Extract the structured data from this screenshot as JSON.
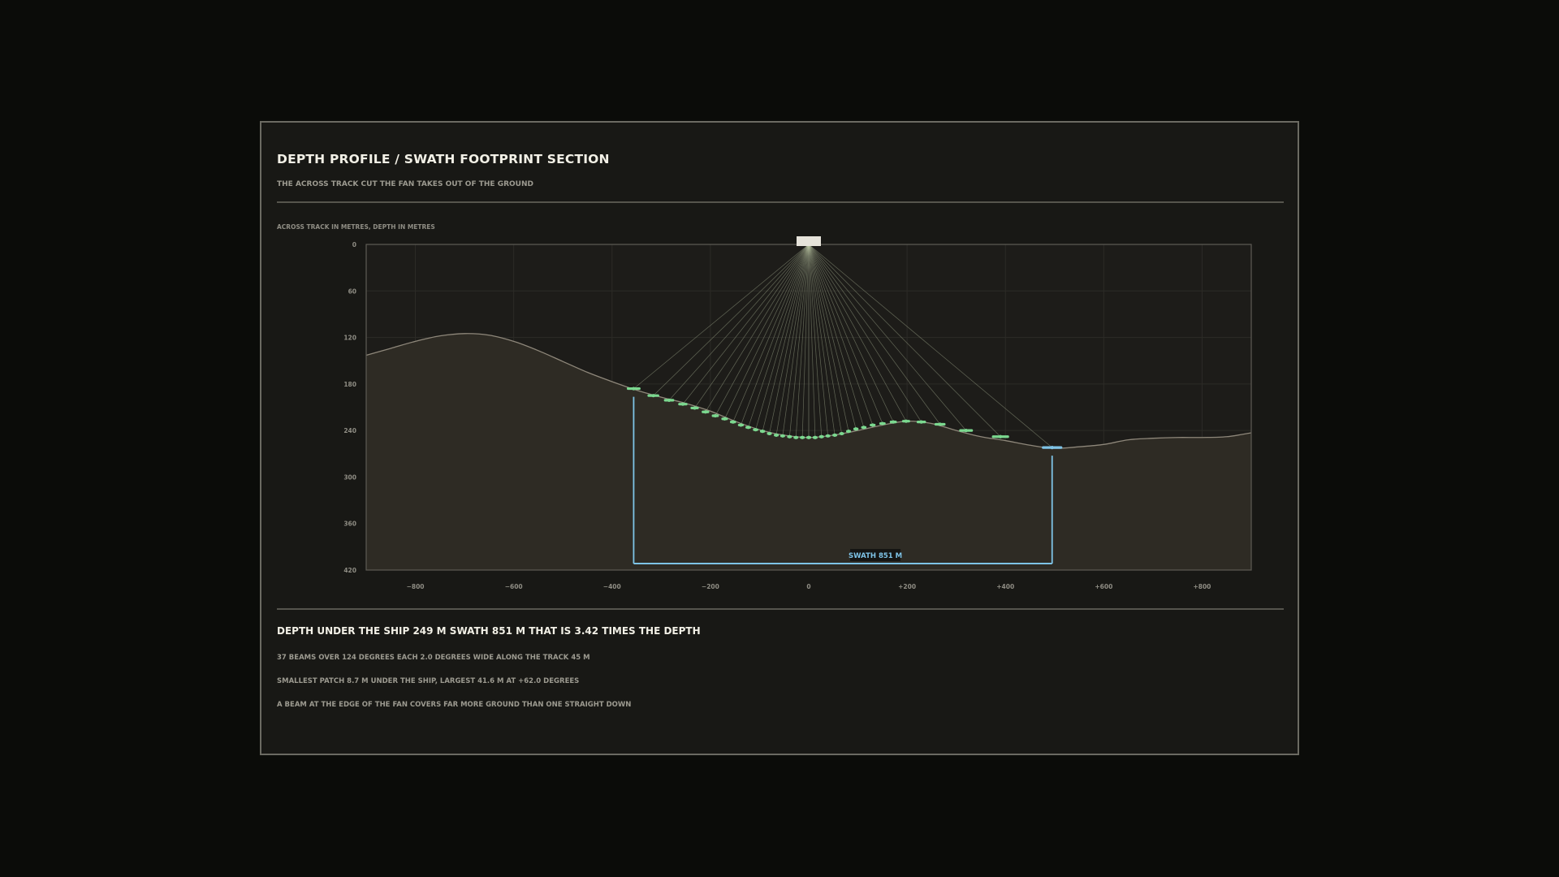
{
  "header": {
    "title": "DEPTH PROFILE / SWATH FOOTPRINT SECTION",
    "subtitle": "THE ACROSS TRACK CUT THE FAN TAKES OUT OF THE GROUND"
  },
  "chart_data": {
    "type": "area",
    "units_note": "ACROSS TRACK IN METRES, DEPTH IN METRES",
    "xlim": [
      -900,
      900
    ],
    "ylim": [
      0,
      420
    ],
    "y_inverted": true,
    "grid": true,
    "x_ticks": [
      -800,
      -600,
      -400,
      -200,
      0,
      200,
      400,
      600,
      800
    ],
    "x_tick_labels": [
      "−800",
      "−600",
      "−400",
      "−200",
      "0",
      "+200",
      "+400",
      "+600",
      "+800"
    ],
    "y_ticks": [
      0,
      60,
      120,
      180,
      240,
      300,
      360,
      420
    ],
    "y_tick_labels": [
      "0",
      "60",
      "120",
      "180",
      "240",
      "300",
      "360",
      "420"
    ],
    "seabed_profile": {
      "x": [
        -900,
        -850,
        -800,
        -750,
        -700,
        -650,
        -600,
        -550,
        -500,
        -450,
        -400,
        -350,
        -300,
        -250,
        -200,
        -150,
        -100,
        -50,
        0,
        50,
        100,
        150,
        200,
        250,
        300,
        350,
        400,
        450,
        500,
        550,
        600,
        650,
        700,
        750,
        800,
        850,
        900
      ],
      "depth": [
        143,
        134,
        125,
        118,
        115,
        117,
        125,
        137,
        151,
        165,
        177,
        188,
        197,
        205,
        215,
        228,
        239,
        246,
        249,
        246,
        240,
        233,
        228,
        231,
        240,
        248,
        253,
        259,
        263,
        261,
        258,
        252,
        250,
        249,
        249,
        248,
        243
      ]
    },
    "beams": {
      "count": 37,
      "fan_degrees": 124,
      "beam_width_degrees": 2.0,
      "source": {
        "x": 0,
        "depth": 0
      },
      "footprints": [
        {
          "x": -356,
          "depth": 186,
          "width": 28
        },
        {
          "x": -316,
          "depth": 195,
          "width": 24
        },
        {
          "x": -284,
          "depth": 201,
          "width": 21
        },
        {
          "x": -256,
          "depth": 206,
          "width": 19
        },
        {
          "x": -232,
          "depth": 211,
          "width": 17
        },
        {
          "x": -210,
          "depth": 216,
          "width": 15.5
        },
        {
          "x": -190,
          "depth": 221,
          "width": 14.5
        },
        {
          "x": -171,
          "depth": 225,
          "width": 13.5
        },
        {
          "x": -154,
          "depth": 229,
          "width": 12.5
        },
        {
          "x": -138,
          "depth": 233,
          "width": 12
        },
        {
          "x": -123,
          "depth": 236,
          "width": 11.5
        },
        {
          "x": -108,
          "depth": 239,
          "width": 11
        },
        {
          "x": -94,
          "depth": 241,
          "width": 10.5
        },
        {
          "x": -80,
          "depth": 244,
          "width": 10
        },
        {
          "x": -66,
          "depth": 246,
          "width": 9.6
        },
        {
          "x": -53,
          "depth": 247,
          "width": 9.3
        },
        {
          "x": -39,
          "depth": 248,
          "width": 9
        },
        {
          "x": -26,
          "depth": 249,
          "width": 8.8
        },
        {
          "x": -13,
          "depth": 249,
          "width": 8.7
        },
        {
          "x": 0,
          "depth": 249,
          "width": 8.7
        },
        {
          "x": 13,
          "depth": 249,
          "width": 8.7
        },
        {
          "x": 26,
          "depth": 248,
          "width": 8.8
        },
        {
          "x": 39,
          "depth": 247,
          "width": 9
        },
        {
          "x": 53,
          "depth": 246,
          "width": 9.3
        },
        {
          "x": 67,
          "depth": 244,
          "width": 9.6
        },
        {
          "x": 81,
          "depth": 241,
          "width": 10
        },
        {
          "x": 96,
          "depth": 238,
          "width": 10.5
        },
        {
          "x": 112,
          "depth": 236,
          "width": 11
        },
        {
          "x": 130,
          "depth": 233,
          "width": 12
        },
        {
          "x": 150,
          "depth": 231,
          "width": 13
        },
        {
          "x": 172,
          "depth": 229,
          "width": 14.5
        },
        {
          "x": 198,
          "depth": 228,
          "width": 16.5
        },
        {
          "x": 229,
          "depth": 229,
          "width": 19
        },
        {
          "x": 267,
          "depth": 232,
          "width": 22.5
        },
        {
          "x": 320,
          "depth": 240,
          "width": 28
        },
        {
          "x": 390,
          "depth": 248,
          "width": 35
        },
        {
          "x": 495,
          "depth": 262,
          "width": 41.6
        }
      ]
    },
    "swath": {
      "left_x": -356,
      "right_x": 495,
      "width_m": 851,
      "label": "SWATH  851 M"
    },
    "depth_under_ship_m": 249
  },
  "summary": {
    "headline": "DEPTH UNDER THE SHIP  249 M   SWATH  851 M   THAT IS 3.42 TIMES THE DEPTH",
    "line1": "37 BEAMS OVER 124 DEGREES   EACH 2.0 DEGREES WIDE   ALONG THE TRACK   45 M",
    "line2": "SMALLEST PATCH  8.7 M UNDER THE SHIP, LARGEST  41.6 M AT +62.0 DEGREES",
    "line3": "A BEAM AT THE EDGE OF THE FAN COVERS FAR MORE GROUND THAN ONE STRAIGHT DOWN"
  },
  "colors": {
    "panel_bg": "#181815",
    "plot_bg": "#1d1c19",
    "seabed_fill": "#2e2b24",
    "seabed_line": "#8e877a",
    "beam_line": "#b9c4a2",
    "footprint": "#7bd88f",
    "swath": "#7ec3e6",
    "ship": "#e6e3da"
  }
}
